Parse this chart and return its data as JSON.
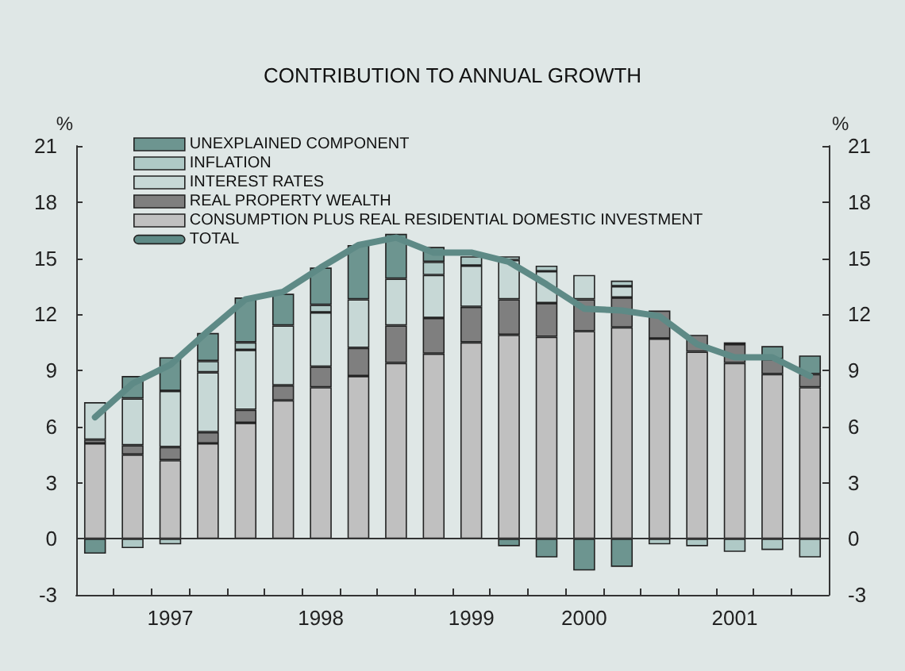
{
  "chart_data": {
    "type": "bar",
    "title": "CONTRIBUTION TO ANNUAL GROWTH",
    "ylabel": "%",
    "y2label": "%",
    "stacked": true,
    "legend": "top left",
    "grid": false,
    "categories": [
      null,
      null,
      "1997",
      null,
      null,
      null,
      "1998",
      null,
      null,
      null,
      "1999",
      null,
      null,
      "2000",
      null,
      null,
      null,
      "2001",
      null,
      null
    ],
    "ylim": [
      -3,
      21
    ],
    "yticks": [
      -3,
      0,
      3,
      6,
      9,
      12,
      15,
      18,
      21
    ],
    "y2lim": [
      -3,
      21
    ],
    "y2ticks": [
      -3,
      0,
      3,
      6,
      9,
      12,
      15,
      18,
      21
    ],
    "ref_lines": [
      {
        "axis": "y",
        "value": 0,
        "color": "#333333"
      }
    ],
    "series": [
      {
        "name": "CONSUMPTION PLUS REAL RESIDENTIAL DOMESTIC INVESTMENT",
        "color": "#c0c0c0",
        "values": [
          5.1,
          4.5,
          4.2,
          5.1,
          6.2,
          7.4,
          8.1,
          8.7,
          9.4,
          9.9,
          10.5,
          10.9,
          10.8,
          11.1,
          11.3,
          10.7,
          10.0,
          9.4,
          8.8,
          8.1
        ]
      },
      {
        "name": "REAL PROPERTY WEALTH",
        "color": "#7f7f7f",
        "values": [
          0.2,
          0.5,
          0.7,
          0.6,
          0.7,
          0.8,
          1.1,
          1.5,
          2.0,
          1.9,
          1.9,
          1.9,
          1.8,
          1.7,
          1.6,
          1.5,
          0.9,
          1.0,
          0.8,
          0.7
        ]
      },
      {
        "name": "INTEREST RATES",
        "color": "#c7d8d6",
        "values": [
          2.0,
          2.5,
          3.0,
          3.2,
          3.2,
          3.2,
          2.9,
          2.6,
          2.5,
          2.3,
          2.2,
          2.1,
          1.7,
          1.3,
          0.6,
          null,
          null,
          null,
          null,
          null
        ]
      },
      {
        "name": "INFLATION",
        "color": "#afc9c6",
        "values": [
          null,
          -0.5,
          -0.3,
          0.6,
          0.4,
          null,
          0.4,
          null,
          null,
          0.7,
          0.5,
          0.2,
          0.3,
          null,
          0.3,
          -0.3,
          -0.4,
          -0.7,
          -0.6,
          -1.0
        ]
      },
      {
        "name": "UNEXPLAINED COMPONENT",
        "color": "#6d9590",
        "values": [
          -0.8,
          1.2,
          1.8,
          1.5,
          2.4,
          1.7,
          2.0,
          2.9,
          2.4,
          0.8,
          null,
          -0.4,
          -1.0,
          -1.7,
          -1.5,
          null,
          null,
          0.1,
          0.7,
          1.0
        ]
      },
      {
        "name": "TOTAL",
        "type": "line",
        "color": "#5e8a86",
        "values": [
          6.5,
          8.3,
          9.3,
          11.1,
          12.8,
          13.2,
          14.5,
          15.7,
          16.1,
          15.3,
          15.3,
          14.8,
          13.6,
          12.3,
          12.2,
          11.9,
          10.4,
          9.7,
          9.7,
          8.7
        ]
      }
    ]
  }
}
